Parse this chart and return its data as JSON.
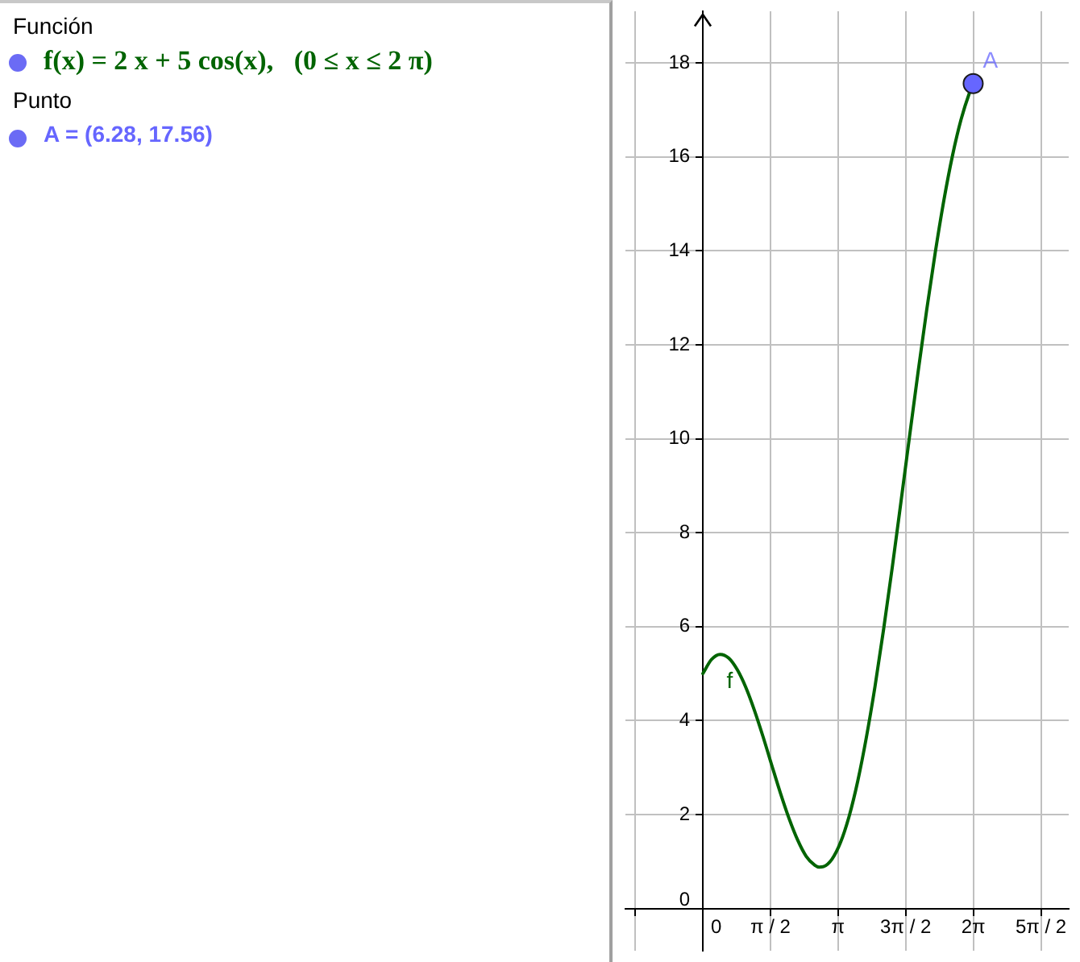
{
  "chart_data": {
    "type": "line",
    "annotations": [
      "Función",
      "f(x) = 2 x + 5 cos(x),   (0 ≤ x ≤ 2 π)",
      "Punto",
      "A = (6.28, 17.56)"
    ],
    "xlim": [
      -1.8,
      8.5
    ],
    "xticks": [
      {
        "value": -1.5708,
        "label": null
      },
      0,
      {
        "value": 1.5708,
        "label": "π / 2"
      },
      {
        "value": 3.1416,
        "label": "π"
      },
      {
        "value": 4.7124,
        "label": "3π / 2"
      },
      {
        "value": 6.2832,
        "label": "2π"
      },
      {
        "value": 7.854,
        "label": "5π / 2"
      }
    ],
    "ylim": [
      -0.9,
      19.1
    ],
    "yticks": [
      0,
      2,
      4,
      6,
      8,
      10,
      12,
      14,
      16,
      18
    ],
    "grid": true,
    "legend": false,
    "series": [
      {
        "name": "f",
        "type": "line",
        "color": "#006400",
        "marker": "none",
        "line_style": "solid",
        "x": [
          0,
          0.2,
          0.4,
          0.6,
          0.8,
          1.0,
          1.2,
          1.4,
          1.6,
          1.8,
          2.0,
          2.2,
          2.4,
          2.6,
          2.7,
          2.8,
          3.0,
          3.2,
          3.4,
          3.6,
          3.8,
          4.0,
          4.2,
          4.4,
          4.6,
          4.8,
          5.0,
          5.2,
          5.4,
          5.6,
          5.8,
          6.0,
          6.2,
          6.28
        ],
        "values": [
          5.0,
          5.3,
          5.41,
          5.33,
          5.08,
          4.7,
          4.21,
          3.65,
          3.05,
          2.46,
          1.92,
          1.46,
          1.11,
          0.92,
          0.88,
          0.89,
          1.05,
          1.41,
          1.97,
          2.72,
          3.65,
          4.73,
          5.95,
          7.26,
          8.64,
          10.04,
          11.42,
          12.74,
          13.97,
          15.08,
          16.03,
          16.8,
          17.38,
          17.56
        ]
      },
      {
        "name": "A",
        "type": "scatter",
        "color": "#6666ff",
        "marker": "circle",
        "x": [
          6.28
        ],
        "values": [
          17.56
        ]
      }
    ]
  }
}
